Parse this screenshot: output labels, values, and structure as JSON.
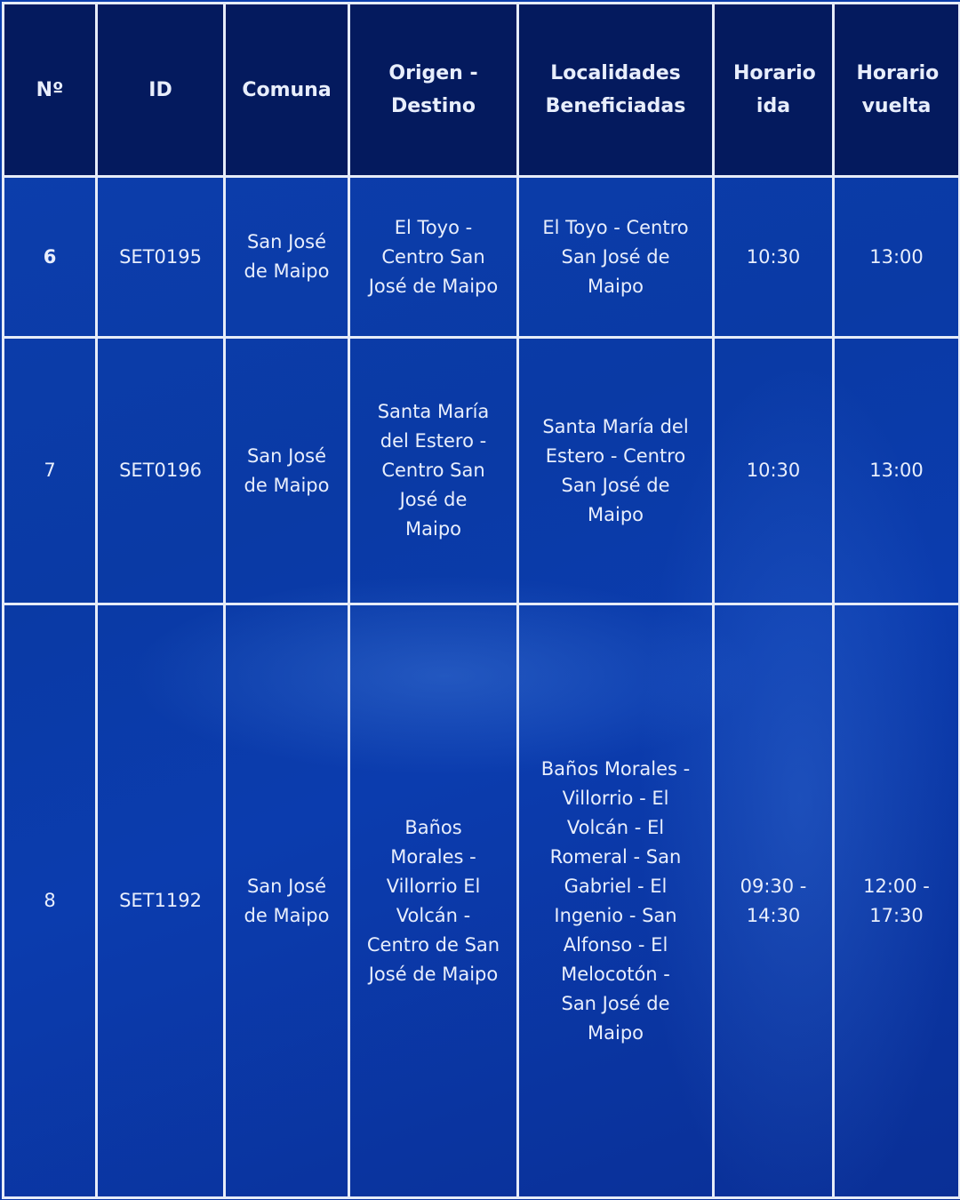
{
  "table": {
    "headers": [
      "Nº",
      "ID",
      "Comuna",
      "Origen - Destino",
      "Localidades Beneficiadas",
      "Horario ida",
      "Horario vuelta"
    ],
    "rows": [
      {
        "n": "6",
        "id": "SET0195",
        "comuna": "San José de Maipo",
        "origen_destino": "El Toyo - Centro San José de Maipo",
        "localidades": "El Toyo - Centro San José de Maipo",
        "ida": "10:30",
        "vuelta": "13:00"
      },
      {
        "n": "7",
        "id": "SET0196",
        "comuna": "San José de Maipo",
        "origen_destino": "Santa María del Estero - Centro San José de Maipo",
        "localidades": "Santa María del Estero - Centro San José de Maipo",
        "ida": "10:30",
        "vuelta": "13:00"
      },
      {
        "n": "8",
        "id": "SET1192",
        "comuna": "San José de Maipo",
        "origen_destino": "Baños Morales - Villorrio El Volcán - Centro de San José de Maipo",
        "localidades": "Baños Morales - Villorrio - El Volcán - El Romeral - San Gabriel - El Ingenio - San Alfonso - El Melocotón - San José de Maipo",
        "ida": "09:30 - 14:30",
        "vuelta": "12:00 - 17:30"
      }
    ]
  },
  "colors": {
    "header_bg": "#041a5e",
    "body_bg": "#0b3cae",
    "border": "#e6ecf8",
    "text": "#e8eefc"
  }
}
